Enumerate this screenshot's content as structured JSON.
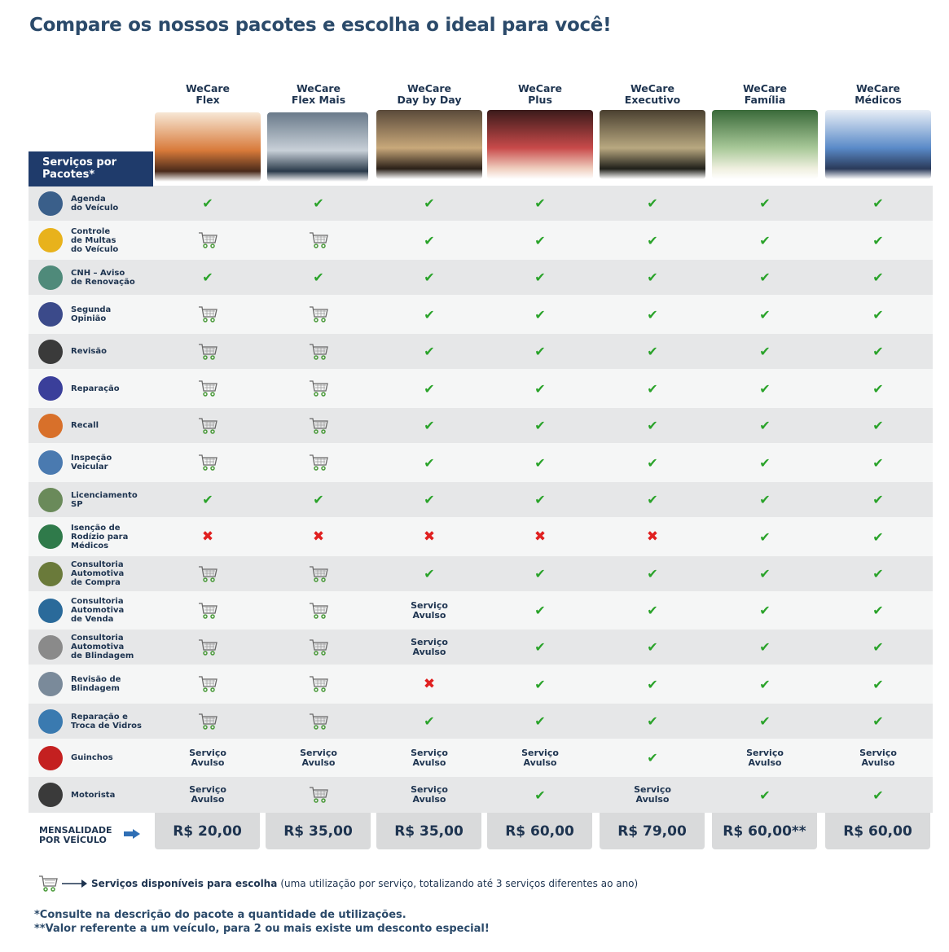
{
  "title": "Compare os nossos pacotes e escolha o ideal para você!",
  "services_header": "Serviços por\nPacotes*",
  "packages": [
    {
      "name": "WeCare\nFlex",
      "price": "R$ 20,00"
    },
    {
      "name": "WeCare\nFlex Mais",
      "price": "R$ 35,00"
    },
    {
      "name": "WeCare\nDay by Day",
      "price": "R$ 35,00"
    },
    {
      "name": "WeCare\nPlus",
      "price": "R$ 60,00"
    },
    {
      "name": "WeCare\nExecutivo",
      "price": "R$ 79,00"
    },
    {
      "name": "WeCare\nFamília",
      "price": "R$ 60,00**"
    },
    {
      "name": "WeCare\nMédicos",
      "price": "R$ 60,00"
    }
  ],
  "services": [
    {
      "label": "Agenda\ndo Veículo",
      "icon": "calendar-icon",
      "color": "#3a5f8a",
      "values": [
        "check",
        "check",
        "check",
        "check",
        "check",
        "check",
        "check"
      ]
    },
    {
      "label": "Controle\nde Multas\ndo Veículo",
      "icon": "ticket-icon",
      "color": "#e8b21c",
      "values": [
        "cart",
        "cart",
        "check",
        "check",
        "check",
        "check",
        "check"
      ]
    },
    {
      "label": "CNH – Aviso\nde Renovação",
      "icon": "license-icon",
      "color": "#4f8a7a",
      "values": [
        "check",
        "check",
        "check",
        "check",
        "check",
        "check",
        "check"
      ]
    },
    {
      "label": "Segunda\nOpinião",
      "icon": "mechanics-icon",
      "color": "#3b4a8a",
      "values": [
        "cart",
        "cart",
        "check",
        "check",
        "check",
        "check",
        "check"
      ]
    },
    {
      "label": "Revisão",
      "icon": "tire-icon",
      "color": "#3a3a3a",
      "values": [
        "cart",
        "cart",
        "check",
        "check",
        "check",
        "check",
        "check"
      ]
    },
    {
      "label": "Reparação",
      "icon": "repair-icon",
      "color": "#3a3f9a",
      "values": [
        "cart",
        "cart",
        "check",
        "check",
        "check",
        "check",
        "check"
      ]
    },
    {
      "label": "Recall",
      "icon": "warning-icon",
      "color": "#d8702a",
      "values": [
        "cart",
        "cart",
        "check",
        "check",
        "check",
        "check",
        "check"
      ]
    },
    {
      "label": "Inspeção\nVeicular",
      "icon": "inspection-icon",
      "color": "#4a7ab0",
      "values": [
        "cart",
        "cart",
        "check",
        "check",
        "check",
        "check",
        "check"
      ]
    },
    {
      "label": "Licenciamento\nSP",
      "icon": "clipboard-icon",
      "color": "#6a8a5a",
      "values": [
        "check",
        "check",
        "check",
        "check",
        "check",
        "check",
        "check"
      ]
    },
    {
      "label": "Isenção de\nRodízio para\nMédicos",
      "icon": "medical-icon",
      "color": "#2f7a4a",
      "values": [
        "cross",
        "cross",
        "cross",
        "cross",
        "cross",
        "check",
        "check"
      ]
    },
    {
      "label": "Consultoria\nAutomotiva\nde Compra",
      "icon": "buy-car-icon",
      "color": "#6a7a3a",
      "values": [
        "cart",
        "cart",
        "check",
        "check",
        "check",
        "check",
        "check"
      ]
    },
    {
      "label": "Consultoria\nAutomotiva\nde Venda",
      "icon": "sell-car-icon",
      "color": "#2a6a9a",
      "values": [
        "cart",
        "cart",
        "avulso",
        "check",
        "check",
        "check",
        "check"
      ]
    },
    {
      "label": "Consultoria\nAutomotiva\nde Blindagem",
      "icon": "shield-icon",
      "color": "#8a8a8a",
      "values": [
        "cart",
        "cart",
        "avulso",
        "check",
        "check",
        "check",
        "check"
      ]
    },
    {
      "label": "Revisão de\nBlindagem",
      "icon": "magnifier-icon",
      "color": "#7a8a9a",
      "values": [
        "cart",
        "cart",
        "cross",
        "check",
        "check",
        "check",
        "check"
      ]
    },
    {
      "label": "Reparação e\nTroca de Vidros",
      "icon": "windshield-icon",
      "color": "#3a7ab0",
      "values": [
        "cart",
        "cart",
        "check",
        "check",
        "check",
        "check",
        "check"
      ]
    },
    {
      "label": "Guinchos",
      "icon": "tow-truck-icon",
      "color": "#c42020",
      "values": [
        "avulso",
        "avulso",
        "avulso",
        "avulso",
        "check",
        "avulso",
        "avulso"
      ]
    },
    {
      "label": "Motorista",
      "icon": "driver-icon",
      "color": "#3a3a3a",
      "values": [
        "avulso",
        "cart",
        "avulso",
        "check",
        "avulso",
        "check",
        "check"
      ]
    }
  ],
  "avulso_text": "Serviço\nAvulso",
  "mensalidade_label": "MENSALIDADE\nPOR VEÍCULO",
  "legend": {
    "bold": "Serviços disponíveis para escolha",
    "rest": "(uma utilização por serviço, totalizando até 3 serviços diferentes ao ano)"
  },
  "notes": "*Consulte na descrição do pacote a quantidade de utilizações.\n**Valor referente a um veículo, para 2 ou mais existe um desconto especial!"
}
